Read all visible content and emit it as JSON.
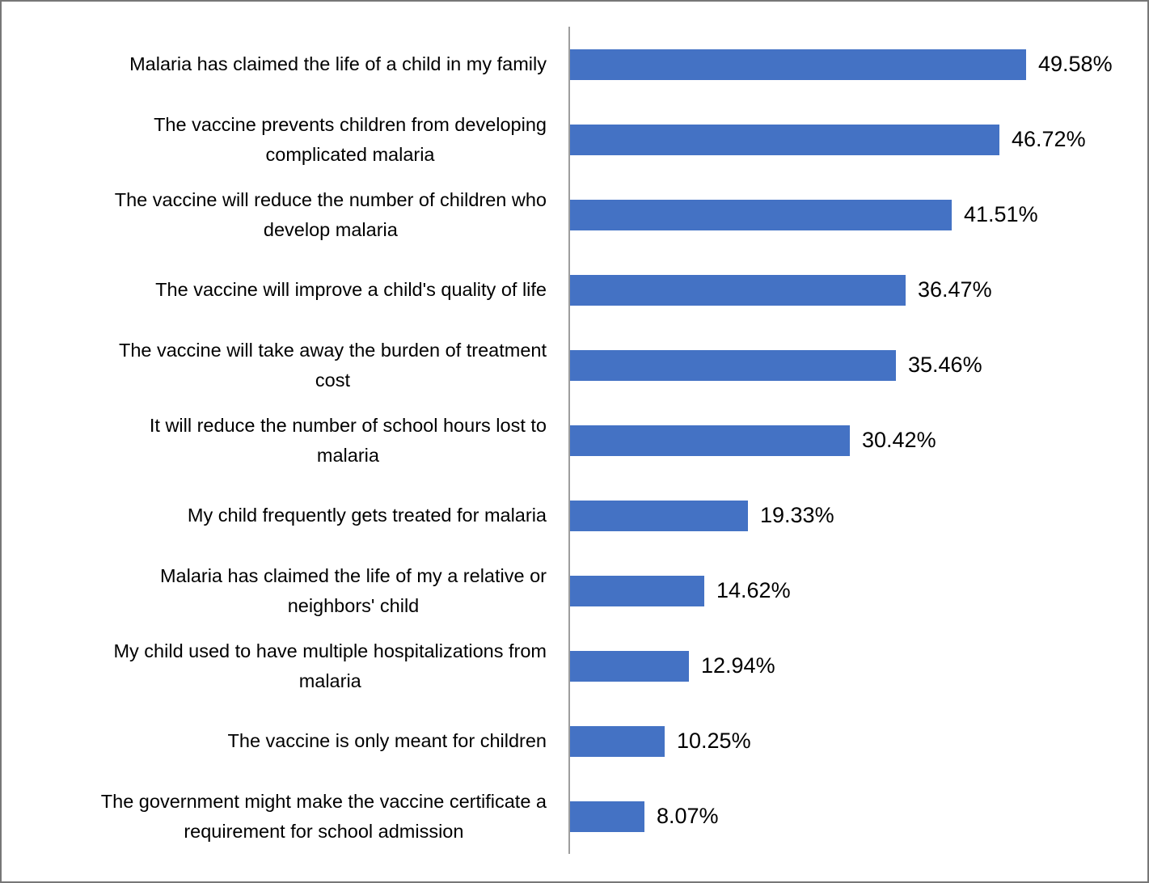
{
  "chart_data": {
    "type": "bar",
    "orientation": "horizontal",
    "title": "",
    "xlabel": "",
    "ylabel": "",
    "grid": false,
    "legend": false,
    "xlim": [
      0,
      63
    ],
    "bar_color": "#4472C4",
    "axis_line_color": "#9e9e9e",
    "frame_border_color": "#777777",
    "text_color": "#000000",
    "value_label_position": "outside-end",
    "categories": [
      "Malaria has claimed the life of a child in my family",
      "The vaccine prevents children from developing\ncomplicated malaria",
      "The vaccine will reduce the number of children who\ndevelop malaria",
      "The vaccine will improve a child's quality of life",
      "The vaccine will take away the burden of treatment\ncost",
      "It will reduce the number of school hours lost to\nmalaria",
      "My child  frequently gets treated for malaria",
      "Malaria has claimed the life of my a relative or\nneighbors' child",
      "My child used to have multiple hospitalizations from\nmalaria",
      "The vaccine is only meant for children",
      "The government might make the vaccine certificate a\nrequirement for school admission"
    ],
    "values": [
      49.58,
      46.72,
      41.51,
      36.47,
      35.46,
      30.42,
      19.33,
      14.62,
      12.94,
      10.25,
      8.07
    ],
    "value_labels": [
      "49.58%",
      "46.72%",
      "41.51%",
      "36.47%",
      "35.46%",
      "30.42%",
      "19.33%",
      "14.62%",
      "12.94%",
      "10.25%",
      "8.07%"
    ]
  }
}
